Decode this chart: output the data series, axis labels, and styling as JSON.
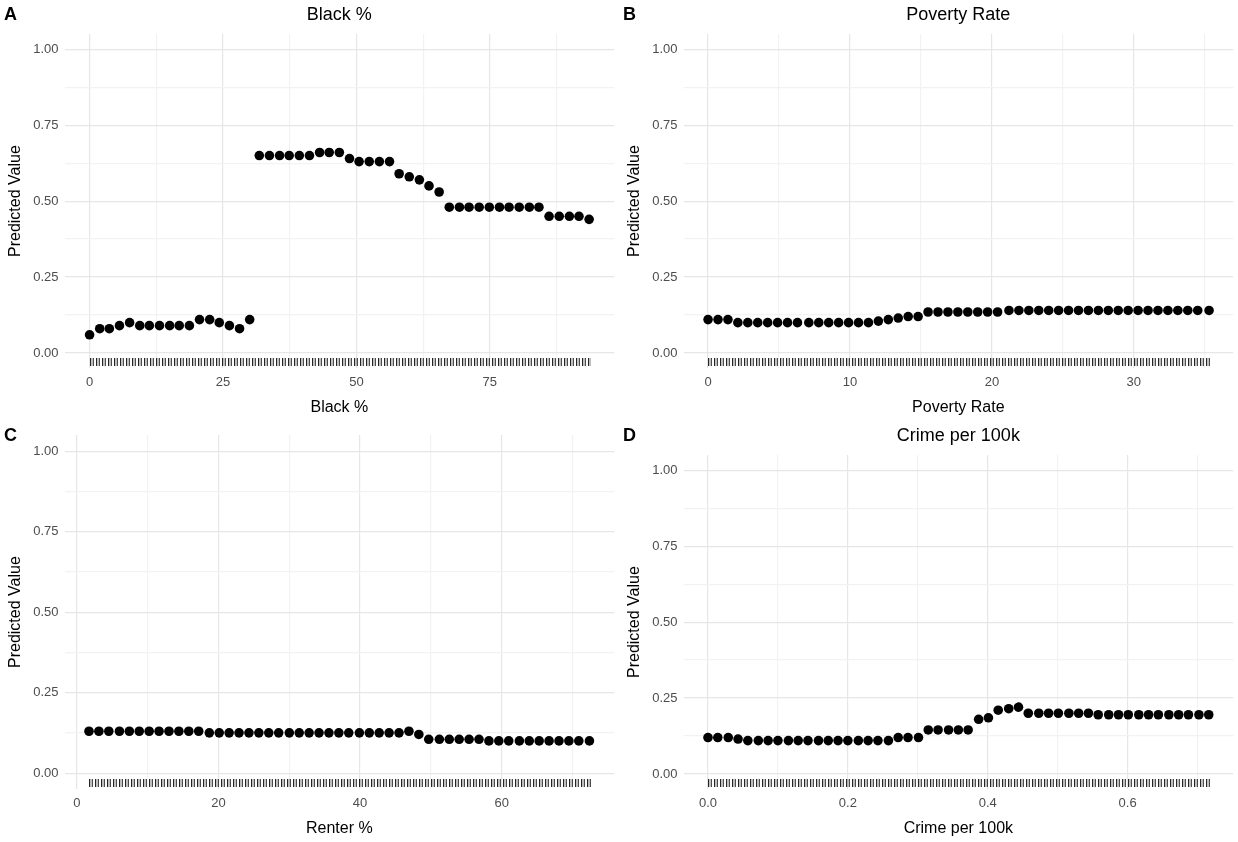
{
  "chart_data": [
    {
      "type": "scatter",
      "title": "Black %",
      "xlabel": "Black %",
      "ylabel": "Predicted Value",
      "annotations": [
        "A"
      ],
      "color": "#000000",
      "marker": "circle",
      "grid": true,
      "x": [
        0,
        1.9,
        3.7,
        5.6,
        7.5,
        9.4,
        11.2,
        13.1,
        15.0,
        16.8,
        18.7,
        20.6,
        22.5,
        24.3,
        26.2,
        28.1,
        30.0,
        31.8,
        33.7,
        35.6,
        37.4,
        39.3,
        41.2,
        43.1,
        44.9,
        46.8,
        48.7,
        50.5,
        52.4,
        54.3,
        56.2,
        58.0,
        59.9,
        61.8,
        63.6,
        65.5,
        67.4,
        69.3,
        71.1,
        73.0,
        74.9,
        76.8,
        78.6,
        80.5,
        82.4,
        84.2,
        86.1,
        88.0,
        89.9,
        91.7,
        93.6
      ],
      "values": [
        0.06,
        0.08,
        0.08,
        0.09,
        0.1,
        0.09,
        0.09,
        0.09,
        0.09,
        0.09,
        0.09,
        0.11,
        0.11,
        0.1,
        0.09,
        0.08,
        0.11,
        0.65,
        0.65,
        0.65,
        0.65,
        0.65,
        0.65,
        0.66,
        0.66,
        0.66,
        0.64,
        0.63,
        0.63,
        0.63,
        0.63,
        0.59,
        0.58,
        0.57,
        0.55,
        0.53,
        0.48,
        0.48,
        0.48,
        0.48,
        0.48,
        0.48,
        0.48,
        0.48,
        0.48,
        0.48,
        0.45,
        0.45,
        0.45,
        0.45,
        0.44
      ],
      "xlim": [
        -4.7,
        98.3
      ],
      "xticks": [
        0,
        {
          "value": 12.5,
          "label": null
        },
        25,
        {
          "value": 37.5,
          "label": null
        },
        50,
        {
          "value": 62.5,
          "label": null
        },
        75,
        {
          "value": 87.5,
          "label": null
        }
      ],
      "ylim": [
        -0.05,
        1.05
      ],
      "yticks": [
        {
          "value": 0,
          "label": "0.00"
        },
        {
          "value": 0.125,
          "label": null
        },
        {
          "value": 0.25,
          "label": "0.25"
        },
        {
          "value": 0.375,
          "label": null
        },
        {
          "value": 0.5,
          "label": "0.50"
        },
        {
          "value": 0.625,
          "label": null
        },
        {
          "value": 0.75,
          "label": "0.75"
        },
        {
          "value": 0.875,
          "label": null
        },
        {
          "value": 1,
          "label": "1.00"
        }
      ]
    },
    {
      "type": "scatter",
      "title": "Poverty Rate",
      "xlabel": "Poverty Rate",
      "ylabel": "Predicted Value",
      "annotations": [
        "B"
      ],
      "color": "#000000",
      "marker": "circle",
      "grid": true,
      "x": [
        0,
        0.7,
        1.4,
        2.1,
        2.8,
        3.5,
        4.2,
        4.9,
        5.6,
        6.3,
        7.1,
        7.8,
        8.5,
        9.2,
        9.9,
        10.6,
        11.3,
        12.0,
        12.7,
        13.4,
        14.1,
        14.8,
        15.5,
        16.2,
        16.9,
        17.6,
        18.3,
        19.0,
        19.7,
        20.4,
        21.2,
        21.9,
        22.6,
        23.3,
        24.0,
        24.7,
        25.4,
        26.1,
        26.8,
        27.5,
        28.2,
        28.9,
        29.6,
        30.3,
        31.0,
        31.7,
        32.4,
        33.1,
        33.8,
        34.5,
        35.3
      ],
      "values": [
        0.11,
        0.11,
        0.11,
        0.1,
        0.1,
        0.1,
        0.1,
        0.1,
        0.1,
        0.1,
        0.1,
        0.1,
        0.1,
        0.1,
        0.1,
        0.1,
        0.1,
        0.105,
        0.11,
        0.115,
        0.12,
        0.12,
        0.135,
        0.135,
        0.135,
        0.135,
        0.135,
        0.135,
        0.135,
        0.135,
        0.14,
        0.14,
        0.14,
        0.14,
        0.14,
        0.14,
        0.14,
        0.14,
        0.14,
        0.14,
        0.14,
        0.14,
        0.14,
        0.14,
        0.14,
        0.14,
        0.14,
        0.14,
        0.14,
        0.14,
        0.14
      ],
      "xlim": [
        -1.73,
        37.0
      ],
      "xticks": [
        0,
        {
          "value": 5,
          "label": null
        },
        10,
        {
          "value": 15,
          "label": null
        },
        20,
        {
          "value": 25,
          "label": null
        },
        30,
        {
          "value": 35,
          "label": null
        }
      ],
      "ylim": [
        -0.05,
        1.05
      ],
      "yticks": [
        {
          "value": 0,
          "label": "0.00"
        },
        {
          "value": 0.125,
          "label": null
        },
        {
          "value": 0.25,
          "label": "0.25"
        },
        {
          "value": 0.375,
          "label": null
        },
        {
          "value": 0.5,
          "label": "0.50"
        },
        {
          "value": 0.625,
          "label": null
        },
        {
          "value": 0.75,
          "label": "0.75"
        },
        {
          "value": 0.875,
          "label": null
        },
        {
          "value": 1,
          "label": "1.00"
        }
      ]
    },
    {
      "type": "scatter",
      "xlabel": "Renter %",
      "ylabel": "Predicted Value",
      "annotations": [
        "C"
      ],
      "color": "#000000",
      "marker": "circle",
      "grid": true,
      "x": [
        1.7,
        3.1,
        4.5,
        6.0,
        7.4,
        8.8,
        10.2,
        11.6,
        13.0,
        14.4,
        15.8,
        17.2,
        18.7,
        20.1,
        21.5,
        22.9,
        24.3,
        25.7,
        27.1,
        28.5,
        30.0,
        31.4,
        32.8,
        34.2,
        35.6,
        37.0,
        38.4,
        39.9,
        41.3,
        42.7,
        44.1,
        45.5,
        46.9,
        48.3,
        49.7,
        51.2,
        52.6,
        54.0,
        55.4,
        56.8,
        58.2,
        59.6,
        61.0,
        62.5,
        63.9,
        65.3,
        66.7,
        68.1,
        69.5,
        70.9,
        72.4
      ],
      "values": [
        0.13,
        0.13,
        0.13,
        0.13,
        0.13,
        0.13,
        0.13,
        0.13,
        0.13,
        0.13,
        0.13,
        0.13,
        0.125,
        0.125,
        0.125,
        0.125,
        0.125,
        0.125,
        0.125,
        0.125,
        0.125,
        0.125,
        0.125,
        0.125,
        0.125,
        0.125,
        0.125,
        0.125,
        0.125,
        0.125,
        0.125,
        0.125,
        0.13,
        0.12,
        0.105,
        0.105,
        0.105,
        0.105,
        0.105,
        0.105,
        0.1,
        0.1,
        0.1,
        0.1,
        0.1,
        0.1,
        0.1,
        0.1,
        0.1,
        0.1,
        0.1
      ],
      "xlim": [
        -1.76,
        75.9
      ],
      "xticks": [
        0,
        {
          "value": 10,
          "label": null
        },
        20,
        {
          "value": 30,
          "label": null
        },
        40,
        {
          "value": 50,
          "label": null
        },
        60,
        {
          "value": 70,
          "label": null
        }
      ],
      "ylim": [
        -0.05,
        1.05
      ],
      "yticks": [
        {
          "value": 0,
          "label": "0.00"
        },
        {
          "value": 0.125,
          "label": null
        },
        {
          "value": 0.25,
          "label": "0.25"
        },
        {
          "value": 0.375,
          "label": null
        },
        {
          "value": 0.5,
          "label": "0.50"
        },
        {
          "value": 0.625,
          "label": null
        },
        {
          "value": 0.75,
          "label": "0.75"
        },
        {
          "value": 0.875,
          "label": null
        },
        {
          "value": 1,
          "label": "1.00"
        }
      ]
    },
    {
      "type": "scatter",
      "title": "Crime per 100k",
      "xlabel": "Crime per 100k",
      "ylabel": "Predicted Value",
      "annotations": [
        "D"
      ],
      "color": "#000000",
      "marker": "circle",
      "grid": true,
      "x": [
        0,
        0.014,
        0.029,
        0.043,
        0.057,
        0.072,
        0.086,
        0.1,
        0.115,
        0.129,
        0.143,
        0.158,
        0.172,
        0.186,
        0.2,
        0.215,
        0.229,
        0.243,
        0.258,
        0.272,
        0.286,
        0.301,
        0.315,
        0.329,
        0.344,
        0.358,
        0.372,
        0.387,
        0.401,
        0.415,
        0.43,
        0.444,
        0.458,
        0.473,
        0.487,
        0.501,
        0.516,
        0.53,
        0.544,
        0.558,
        0.573,
        0.587,
        0.601,
        0.616,
        0.63,
        0.644,
        0.659,
        0.673,
        0.687,
        0.702,
        0.716
      ],
      "values": [
        0.12,
        0.12,
        0.12,
        0.115,
        0.11,
        0.11,
        0.11,
        0.11,
        0.11,
        0.11,
        0.11,
        0.11,
        0.11,
        0.11,
        0.11,
        0.11,
        0.11,
        0.11,
        0.11,
        0.12,
        0.12,
        0.12,
        0.145,
        0.145,
        0.145,
        0.145,
        0.145,
        0.18,
        0.185,
        0.21,
        0.215,
        0.22,
        0.2,
        0.2,
        0.2,
        0.2,
        0.2,
        0.2,
        0.2,
        0.195,
        0.195,
        0.195,
        0.195,
        0.195,
        0.195,
        0.195,
        0.195,
        0.195,
        0.195,
        0.195,
        0.195
      ],
      "xlim": [
        -0.035,
        0.751
      ],
      "xticks": [
        {
          "value": 0,
          "label": "0.0"
        },
        {
          "value": 0.1,
          "label": null
        },
        {
          "value": 0.2,
          "label": "0.2"
        },
        {
          "value": 0.3,
          "label": null
        },
        {
          "value": 0.4,
          "label": "0.4"
        },
        {
          "value": 0.5,
          "label": null
        },
        {
          "value": 0.6,
          "label": "0.6"
        },
        {
          "value": 0.7,
          "label": null
        }
      ],
      "ylim": [
        -0.05,
        1.05
      ],
      "yticks": [
        {
          "value": 0,
          "label": "0.00"
        },
        {
          "value": 0.125,
          "label": null
        },
        {
          "value": 0.25,
          "label": "0.25"
        },
        {
          "value": 0.375,
          "label": null
        },
        {
          "value": 0.5,
          "label": "0.50"
        },
        {
          "value": 0.625,
          "label": null
        },
        {
          "value": 0.75,
          "label": "0.75"
        },
        {
          "value": 0.875,
          "label": null
        },
        {
          "value": 1,
          "label": "1.00"
        }
      ]
    }
  ]
}
